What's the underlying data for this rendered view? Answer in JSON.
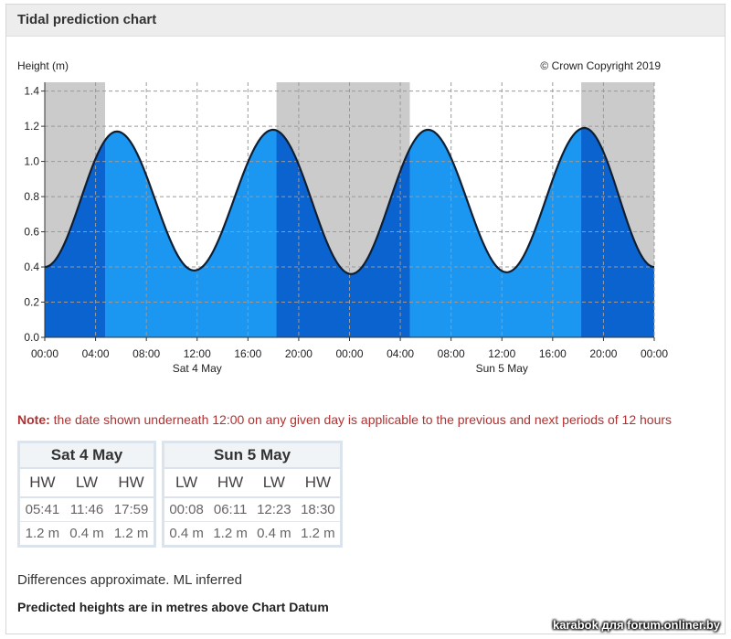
{
  "panel": {
    "title": "Tidal prediction chart"
  },
  "chart_data": {
    "type": "area",
    "ylabel": "Height (m)",
    "copyright": "© Crown Copyright 2019",
    "ylim": [
      0,
      1.45
    ],
    "y_ticks": [
      "0.0",
      "0.2",
      "0.4",
      "0.6",
      "0.8",
      "1.0",
      "1.2",
      "1.4"
    ],
    "y_tick_values": [
      0,
      0.2,
      0.4,
      0.6,
      0.8,
      1.0,
      1.2,
      1.4
    ],
    "xlim_hours": [
      0,
      48
    ],
    "x_ticks": [
      "00:00",
      "04:00",
      "08:00",
      "12:00",
      "16:00",
      "20:00",
      "00:00",
      "04:00",
      "08:00",
      "12:00",
      "16:00",
      "20:00",
      "00:00"
    ],
    "x_tick_hours": [
      0,
      4,
      8,
      12,
      16,
      20,
      24,
      28,
      32,
      36,
      40,
      44,
      48
    ],
    "day_labels": [
      {
        "label": "Sat 4 May",
        "hour": 12
      },
      {
        "label": "Sun 5 May",
        "hour": 36
      }
    ],
    "series": [
      {
        "x_hours": [
          0,
          5.68,
          11.77,
          17.98,
          24.13,
          30.18,
          36.38,
          42.5,
          48
        ],
        "y_m": [
          0.4,
          1.17,
          0.38,
          1.18,
          0.36,
          1.18,
          0.37,
          1.19,
          0.4
        ]
      }
    ],
    "night_shading_hours": [
      [
        0,
        4.75
      ],
      [
        18.25,
        28.75
      ],
      [
        42.25,
        48
      ]
    ],
    "grid": true,
    "colors": {
      "day_fill": "#1b97f2",
      "night_fill": "#0b63cf",
      "night_bg": "#cbcbcb",
      "curve": "#0f1f33",
      "grid": "#9a9a9a"
    }
  },
  "note": {
    "prefix": "Note:",
    "text": " the date shown underneath 12:00 on any given day is applicable to the previous and next periods of 12 hours"
  },
  "tables": [
    {
      "day": "Sat 4 May",
      "types": [
        "HW",
        "LW",
        "HW"
      ],
      "times": [
        "05:41",
        "11:46",
        "17:59"
      ],
      "heights": [
        "1.2 m",
        "0.4 m",
        "1.2 m"
      ]
    },
    {
      "day": "Sun 5 May",
      "types": [
        "LW",
        "HW",
        "LW",
        "HW"
      ],
      "times": [
        "00:08",
        "06:11",
        "12:23",
        "18:30"
      ],
      "heights": [
        "0.4 m",
        "1.2 m",
        "0.4 m",
        "1.2 m"
      ]
    }
  ],
  "footer": {
    "differences": "Differences approximate. ML inferred",
    "datum": "Predicted heights are in metres above Chart Datum"
  },
  "watermark": "karabok для forum.onliner.by"
}
